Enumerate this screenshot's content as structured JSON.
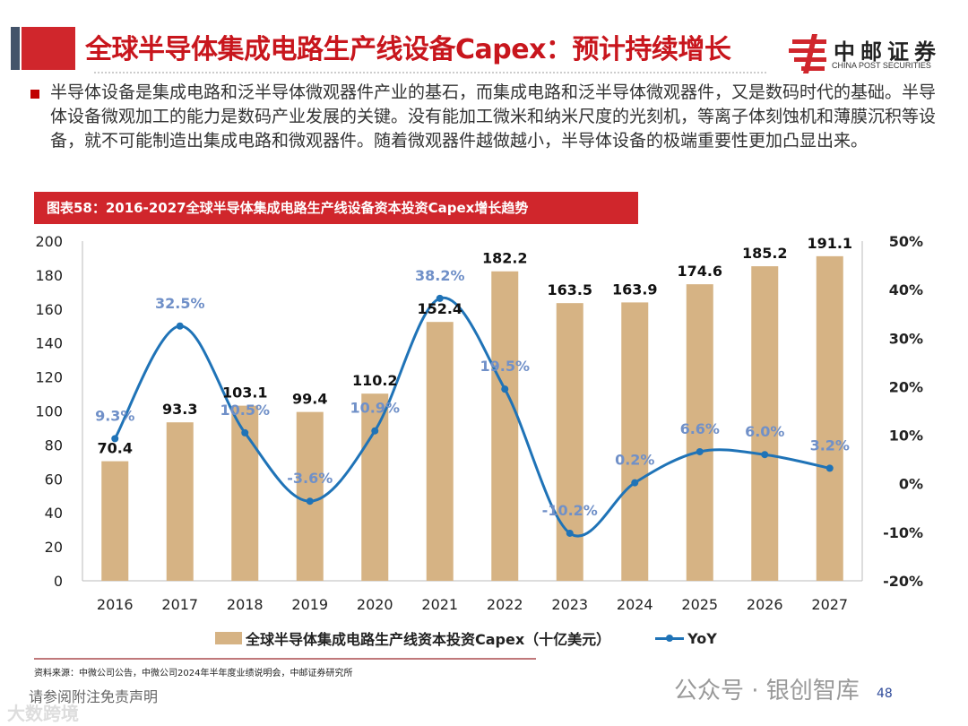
{
  "header": {
    "title": "全球半导体集成电路生产线设备Capex：预计持续增长",
    "logo_cn": "中邮证券",
    "logo_en": "CHINA POST SECURITIES",
    "brand_color": "#c8161d"
  },
  "body": {
    "text": "半导体设备是集成电路和泛半导体微观器件产业的基石，而集成电路和泛半导体微观器件，又是数码时代的基础。半导体设备微观加工的能力是数码产业发展的关键。没有能加工微米和纳米尺度的光刻机，等离子体刻蚀机和薄膜沉积等设备，就不可能制造出集成电路和微观器件。随着微观器件越做越小，半导体设备的极端重要性更加凸显出来。"
  },
  "figure": {
    "caption": "图表58：2016-2027全球半导体集成电路生产线设备资本投资Capex增长趋势"
  },
  "chart_data": {
    "type": "bar+line",
    "categories": [
      "2016",
      "2017",
      "2018",
      "2019",
      "2020",
      "2021",
      "2022",
      "2023",
      "2024",
      "2025",
      "2026",
      "2027"
    ],
    "series": [
      {
        "name": "全球半导体集成电路生产线资本投资Capex（十亿美元）",
        "type": "bar",
        "axis": "left",
        "color": "#d6b384",
        "values": [
          70.4,
          93.3,
          103.1,
          99.4,
          110.2,
          152.4,
          182.2,
          163.5,
          163.9,
          174.6,
          185.2,
          191.1
        ],
        "labels": [
          "70.4",
          "93.3",
          "103.1",
          "99.4",
          "110.2",
          "152.4",
          "182.2",
          "163.5",
          "163.9",
          "174.6",
          "185.2",
          "191.1"
        ]
      },
      {
        "name": "YoY",
        "type": "line",
        "axis": "right",
        "color": "#1f73b7",
        "label_color": "#7090c8",
        "values": [
          9.3,
          32.5,
          10.5,
          -3.6,
          10.9,
          38.2,
          19.5,
          -10.2,
          0.2,
          6.6,
          6.0,
          3.2
        ],
        "labels": [
          "9.3%",
          "32.5%",
          "10.5%",
          "-3.6%",
          "10.9%",
          "38.2%",
          "19.5%",
          "-10.2%",
          "0.2%",
          "6.6%",
          "6.0%",
          "3.2%"
        ]
      }
    ],
    "y_left": {
      "range": [
        0,
        200
      ],
      "ticks": [
        "0",
        "20",
        "40",
        "60",
        "80",
        "100",
        "120",
        "140",
        "160",
        "180",
        "200"
      ]
    },
    "y_right": {
      "range": [
        -20,
        50
      ],
      "ticks": [
        "-20%",
        "-10%",
        "0%",
        "10%",
        "20%",
        "30%",
        "40%",
        "50%"
      ]
    },
    "grid": false,
    "legend": "bottom"
  },
  "footer": {
    "source": "资料来源：中微公司公告，中微公司2024年半年度业绩说明会，中邮证券研究所",
    "disclaimer": "请参阅附注免责声明",
    "page": "48",
    "watermark1": "公众号 · 银创智库",
    "watermark2": "大数跨境"
  }
}
